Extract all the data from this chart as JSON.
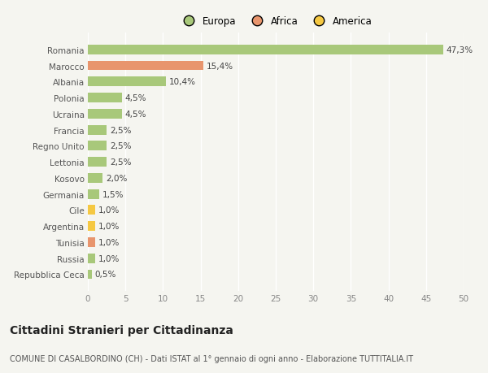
{
  "categories": [
    "Repubblica Ceca",
    "Russia",
    "Tunisia",
    "Argentina",
    "Cile",
    "Germania",
    "Kosovo",
    "Lettonia",
    "Regno Unito",
    "Francia",
    "Ucraina",
    "Polonia",
    "Albania",
    "Marocco",
    "Romania"
  ],
  "values": [
    0.5,
    1.0,
    1.0,
    1.0,
    1.0,
    1.5,
    2.0,
    2.5,
    2.5,
    2.5,
    4.5,
    4.5,
    10.4,
    15.4,
    47.3
  ],
  "labels": [
    "0,5%",
    "1,0%",
    "1,0%",
    "1,0%",
    "1,0%",
    "1,5%",
    "2,0%",
    "2,5%",
    "2,5%",
    "2,5%",
    "4,5%",
    "4,5%",
    "10,4%",
    "15,4%",
    "47,3%"
  ],
  "colors": [
    "#a8c87a",
    "#a8c87a",
    "#e8956d",
    "#f5c842",
    "#f5c842",
    "#a8c87a",
    "#a8c87a",
    "#a8c87a",
    "#a8c87a",
    "#a8c87a",
    "#a8c87a",
    "#a8c87a",
    "#a8c87a",
    "#e8956d",
    "#a8c87a"
  ],
  "legend": [
    {
      "label": "Europa",
      "color": "#a8c87a"
    },
    {
      "label": "Africa",
      "color": "#e8956d"
    },
    {
      "label": "America",
      "color": "#f5c842"
    }
  ],
  "xlim": [
    0,
    50
  ],
  "xticks": [
    0,
    5,
    10,
    15,
    20,
    25,
    30,
    35,
    40,
    45,
    50
  ],
  "title": "Cittadini Stranieri per Cittadinanza",
  "subtitle": "COMUNE DI CASALBORDINO (CH) - Dati ISTAT al 1° gennaio di ogni anno - Elaborazione TUTTITALIA.IT",
  "background_color": "#f5f5f0",
  "bar_height": 0.6,
  "grid_color": "#ffffff",
  "label_fontsize": 7.5,
  "tick_fontsize": 7.5,
  "title_fontsize": 10,
  "subtitle_fontsize": 7,
  "legend_fontsize": 8.5
}
